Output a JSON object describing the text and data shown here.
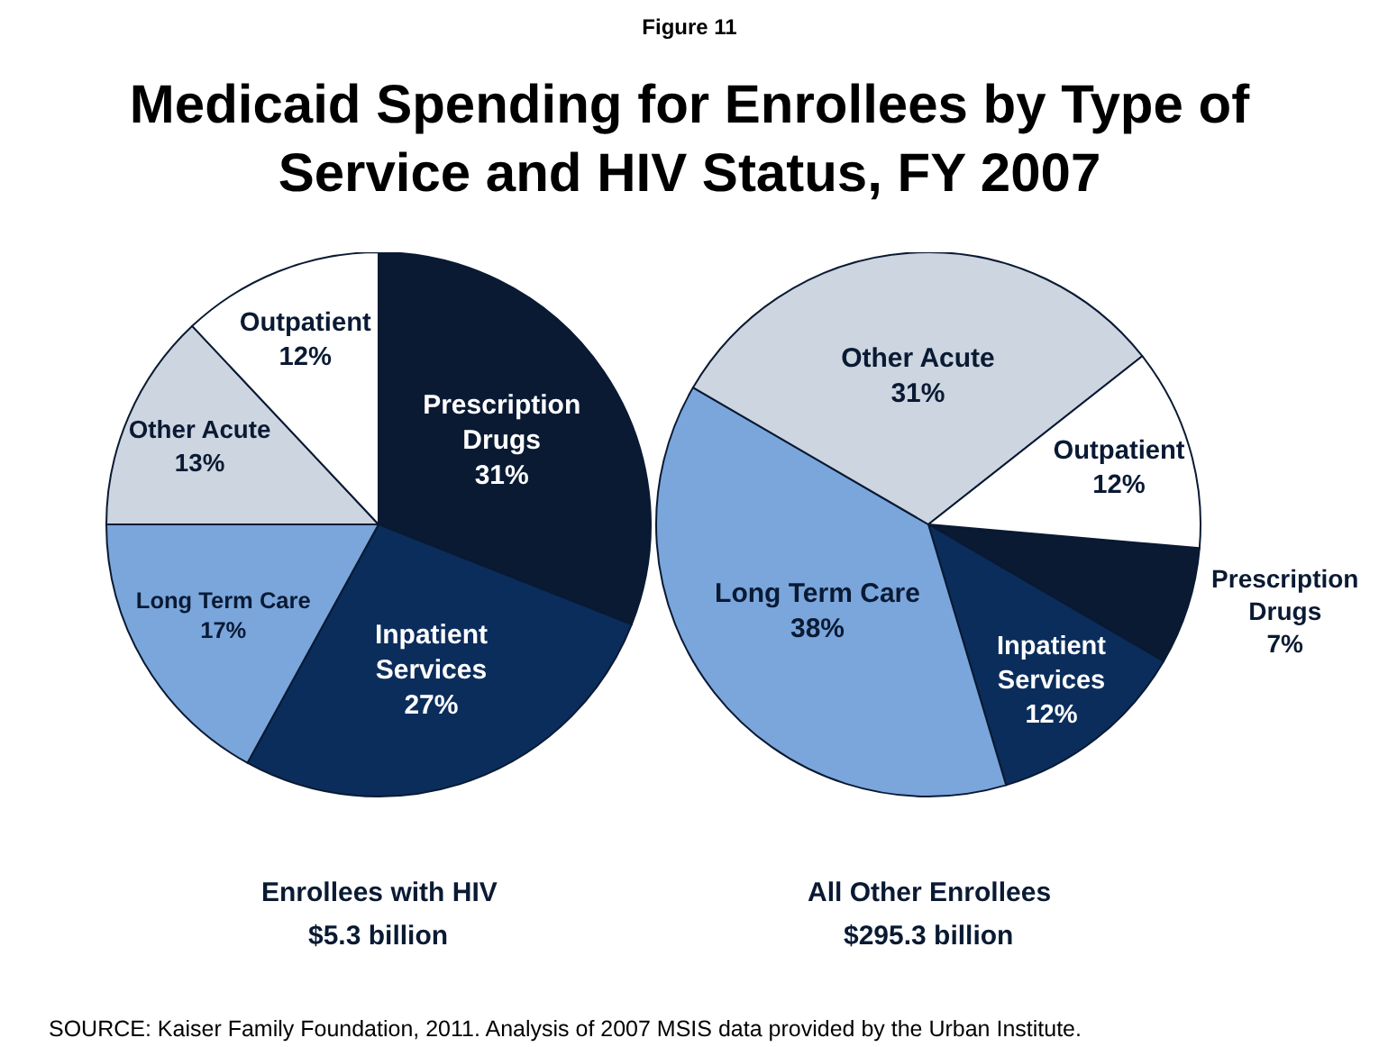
{
  "chart_data": [
    {
      "type": "other",
      "title": "Medicaid Spending for Enrollees by Type of Service and HIV Status, FY 2007",
      "subtitle": "Figure 11",
      "annotations": [
        "SOURCE: Kaiser Family Foundation, 2011. Analysis of 2007 MSIS data provided by the Urban Institute."
      ]
    },
    {
      "type": "pie",
      "xlabel": "Enrollees with HIV",
      "annotations": [
        "$5.3 billion"
      ],
      "categories": [
        "Prescription Drugs",
        "Inpatient Services",
        "Long Term Care",
        "Other Acute",
        "Outpatient"
      ],
      "values": [
        31,
        27,
        17,
        13,
        12
      ],
      "value_labels": [
        "31%",
        "27%",
        "17%",
        "13%",
        "12%"
      ],
      "colors": [
        "#0a1a33",
        "#0b2d5c",
        "#7aa6dc",
        "#ccd5e0",
        "#ffffff"
      ],
      "legend": false
    },
    {
      "type": "pie",
      "xlabel": "All Other Enrollees",
      "annotations": [
        "$295.3 billion"
      ],
      "categories": [
        "Prescription Drugs",
        "Inpatient Services",
        "Long Term Care",
        "Other Acute",
        "Outpatient"
      ],
      "values": [
        7,
        12,
        38,
        31,
        12
      ],
      "value_labels": [
        "7%",
        "12%",
        "38%",
        "31%",
        "12%"
      ],
      "colors": [
        "#0a1a33",
        "#0b2d5c",
        "#7aa6dc",
        "#ccd5e0",
        "#ffffff"
      ],
      "legend": false
    }
  ]
}
